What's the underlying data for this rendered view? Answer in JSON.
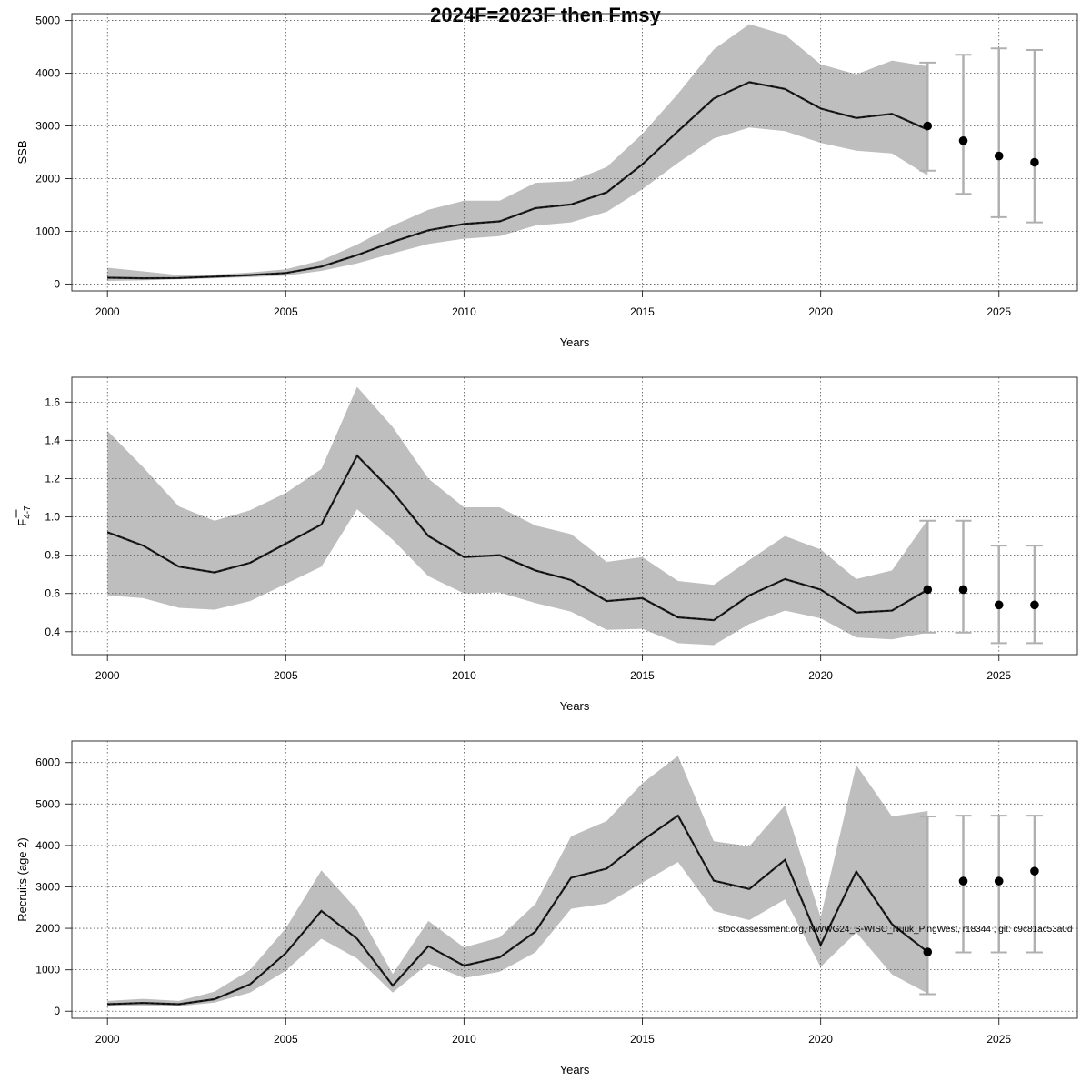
{
  "figure": {
    "title": "2024F=2023F then Fmsy",
    "footnote": "stockassessment.org, NWWG24_S-WISC_Nuuk_PingWest, r18344 ; git: c9c81ac53a0d"
  },
  "colors": {
    "band": "#bebebe",
    "line": "#222222",
    "grid": "#555555",
    "whisker": "#b0b0b0",
    "point": "#000000"
  },
  "chart_data": [
    {
      "id": "ssb",
      "type": "line",
      "xlabel": "Years",
      "ylabel_main": "SSB",
      "ylabel_sub": "",
      "ylabel_bar": false,
      "xlim": [
        1999,
        2027.2
      ],
      "ylim": [
        -130,
        5130
      ],
      "xticks": [
        2000,
        2005,
        2010,
        2015,
        2020,
        2025
      ],
      "yticks": [
        0,
        1000,
        2000,
        3000,
        4000,
        5000
      ],
      "grid": true,
      "x": [
        2000,
        2001,
        2002,
        2003,
        2004,
        2005,
        2006,
        2007,
        2008,
        2009,
        2010,
        2011,
        2012,
        2013,
        2014,
        2015,
        2016,
        2017,
        2018,
        2019,
        2020,
        2021,
        2022,
        2023
      ],
      "estimate": [
        120,
        110,
        115,
        140,
        170,
        210,
        330,
        550,
        800,
        1020,
        1140,
        1190,
        1440,
        1510,
        1740,
        2270,
        2900,
        3520,
        3830,
        3700,
        3330,
        3150,
        3230,
        2930
      ],
      "lower": [
        60,
        70,
        90,
        110,
        130,
        160,
        250,
        390,
        580,
        760,
        860,
        910,
        1110,
        1170,
        1370,
        1800,
        2300,
        2760,
        2970,
        2900,
        2680,
        2530,
        2480,
        2060
      ],
      "upper": [
        310,
        240,
        170,
        180,
        220,
        280,
        450,
        750,
        1110,
        1410,
        1580,
        1580,
        1920,
        1950,
        2220,
        2850,
        3610,
        4450,
        4930,
        4730,
        4170,
        3980,
        4240,
        4130
      ],
      "forecast": {
        "x": [
          2023,
          2024,
          2025,
          2026
        ],
        "median": [
          3000,
          2720,
          2430,
          2310
        ],
        "low": [
          2150,
          1710,
          1270,
          1170
        ],
        "high": [
          4200,
          4350,
          4470,
          4440
        ]
      }
    },
    {
      "id": "fbar",
      "type": "line",
      "xlabel": "Years",
      "ylabel_main": "F",
      "ylabel_sub": "4-7",
      "ylabel_bar": true,
      "xlim": [
        1999,
        2027.2
      ],
      "ylim": [
        0.28,
        1.73
      ],
      "xticks": [
        2000,
        2005,
        2010,
        2015,
        2020,
        2025
      ],
      "yticks": [
        0.4,
        0.6,
        0.8,
        1.0,
        1.2,
        1.4,
        1.6
      ],
      "ytick_labels": [
        "0.4",
        "0.6",
        "0.8",
        "1.0",
        "1.2",
        "1.4",
        "1.6"
      ],
      "grid": true,
      "x": [
        2000,
        2001,
        2002,
        2003,
        2004,
        2005,
        2006,
        2007,
        2008,
        2009,
        2010,
        2011,
        2012,
        2013,
        2014,
        2015,
        2016,
        2017,
        2018,
        2019,
        2020,
        2021,
        2022,
        2023
      ],
      "estimate": [
        0.92,
        0.85,
        0.74,
        0.71,
        0.76,
        0.86,
        0.96,
        1.32,
        1.13,
        0.9,
        0.79,
        0.8,
        0.72,
        0.67,
        0.56,
        0.575,
        0.475,
        0.46,
        0.59,
        0.675,
        0.62,
        0.5,
        0.51,
        0.62
      ],
      "lower": [
        0.59,
        0.575,
        0.525,
        0.515,
        0.56,
        0.65,
        0.74,
        1.04,
        0.88,
        0.69,
        0.6,
        0.605,
        0.55,
        0.505,
        0.41,
        0.415,
        0.34,
        0.33,
        0.44,
        0.51,
        0.47,
        0.37,
        0.36,
        0.395
      ],
      "upper": [
        1.45,
        1.26,
        1.055,
        0.98,
        1.035,
        1.125,
        1.25,
        1.68,
        1.47,
        1.2,
        1.05,
        1.05,
        0.955,
        0.91,
        0.765,
        0.79,
        0.665,
        0.645,
        0.775,
        0.9,
        0.83,
        0.675,
        0.72,
        0.985
      ],
      "forecast": {
        "x": [
          2023,
          2024,
          2025,
          2026
        ],
        "median": [
          0.62,
          0.62,
          0.54,
          0.54
        ],
        "low": [
          0.395,
          0.395,
          0.34,
          0.34
        ],
        "high": [
          0.98,
          0.98,
          0.85,
          0.85
        ]
      }
    },
    {
      "id": "recruits",
      "type": "line",
      "xlabel": "Years",
      "ylabel_main": "Recruits (age 2)",
      "ylabel_sub": "",
      "ylabel_bar": false,
      "xlim": [
        1999,
        2027.2
      ],
      "ylim": [
        -170,
        6520
      ],
      "xticks": [
        2000,
        2005,
        2010,
        2015,
        2020,
        2025
      ],
      "yticks": [
        0,
        1000,
        2000,
        3000,
        4000,
        5000,
        6000
      ],
      "grid": true,
      "x": [
        2000,
        2001,
        2002,
        2003,
        2004,
        2005,
        2006,
        2007,
        2008,
        2009,
        2010,
        2011,
        2012,
        2013,
        2014,
        2015,
        2016,
        2017,
        2018,
        2019,
        2020,
        2021,
        2022,
        2023
      ],
      "estimate": [
        170,
        200,
        170,
        290,
        650,
        1400,
        2420,
        1750,
        620,
        1570,
        1100,
        1300,
        1920,
        3220,
        3440,
        4120,
        4720,
        3150,
        2950,
        3650,
        1600,
        3370,
        2100,
        1430
      ],
      "lower": [
        120,
        140,
        120,
        210,
        450,
        980,
        1750,
        1270,
        450,
        1150,
        800,
        950,
        1420,
        2470,
        2600,
        3100,
        3600,
        2420,
        2200,
        2700,
        1070,
        1900,
        890,
        430
      ],
      "upper": [
        250,
        300,
        250,
        470,
        1000,
        2000,
        3400,
        2450,
        900,
        2180,
        1540,
        1780,
        2590,
        4220,
        4590,
        5500,
        6160,
        4100,
        3980,
        4970,
        2270,
        5940,
        4700,
        4830
      ],
      "forecast": {
        "x": [
          2023,
          2024,
          2025,
          2026
        ],
        "median": [
          1430,
          3140,
          3140,
          3380
        ],
        "low": [
          410,
          1420,
          1420,
          1420
        ],
        "high": [
          4700,
          4720,
          4720,
          4720
        ]
      }
    }
  ]
}
